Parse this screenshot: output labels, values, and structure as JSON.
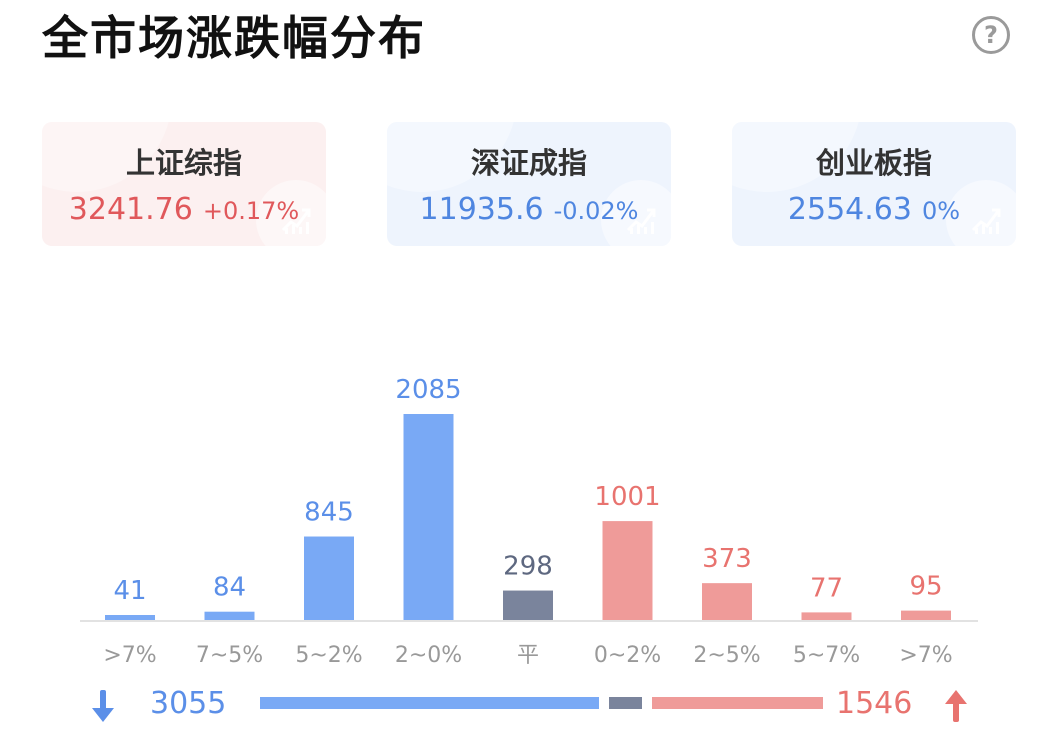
{
  "header": {
    "title": "全市场涨跌幅分布",
    "help_label": "?"
  },
  "indices": [
    {
      "name": "上证综指",
      "price": "3241.76",
      "change": "+0.17%",
      "direction": "up"
    },
    {
      "name": "深证成指",
      "price": "11935.6",
      "change": "-0.02%",
      "direction": "down"
    },
    {
      "name": "创业板指",
      "price": "2554.63",
      "change": "0%",
      "direction": "down"
    }
  ],
  "colors": {
    "down": "#79a9f5",
    "flat": "#7a849c",
    "up": "#ef9b99",
    "down_text": "#5b8fe8",
    "up_text": "#e8736f",
    "flat_text": "#5e6880"
  },
  "chart_data": {
    "type": "bar",
    "categories": [
      ">7%",
      "7~5%",
      "5~2%",
      "2~0%",
      "平",
      "0~2%",
      "2~5%",
      "5~7%",
      ">7%"
    ],
    "values": [
      41,
      84,
      845,
      2085,
      298,
      1001,
      373,
      77,
      95
    ],
    "groups": [
      "down",
      "down",
      "down",
      "down",
      "flat",
      "up",
      "up",
      "up",
      "up"
    ],
    "ylim": [
      0,
      2085
    ]
  },
  "summary": {
    "down_count": "3055",
    "up_count": "1546",
    "down_total": 3055,
    "flat_total": 298,
    "up_total": 1546
  }
}
